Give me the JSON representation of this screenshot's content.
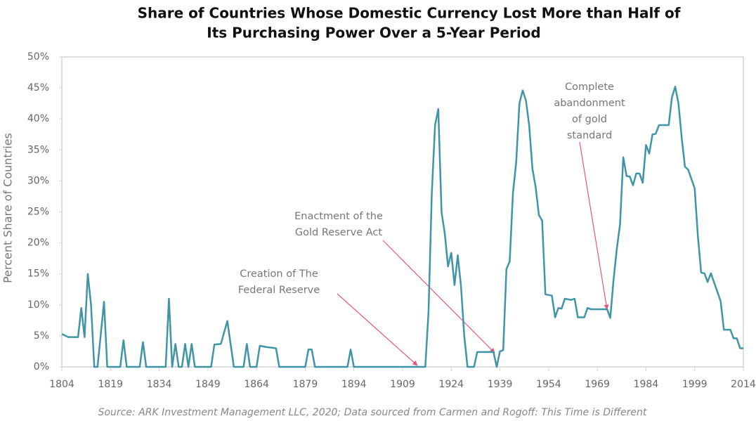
{
  "chart_data": {
    "type": "line",
    "title": [
      "Share of Countries Whose Domestic Currency Lost More than Half of",
      "Its Purchasing Power Over a 5-Year Period"
    ],
    "y_label": "Percent Share of Countries",
    "source": "Source: ARK Investment Management LLC, 2020; Data sourced from Carmen and Rogoff: This Time is Different",
    "annotations": [
      {
        "lines": [
          "Creation of The",
          "Federal Reserve"
        ],
        "x": 1913,
        "y": 0
      },
      {
        "lines": [
          "Enactment of the",
          "Gold Reserve Act"
        ],
        "x": 1934,
        "y": 2.4
      },
      {
        "lines": [
          "Complete",
          "abandonment",
          "of gold",
          "standard"
        ],
        "x": 1971,
        "y": 9.3
      }
    ],
    "xlim": [
      1804,
      2014
    ],
    "xticks": [
      1804,
      1819,
      1834,
      1849,
      1864,
      1879,
      1894,
      1909,
      1924,
      1939,
      1954,
      1969,
      1984,
      1999,
      2014
    ],
    "ylim": [
      0,
      50
    ],
    "yticks": [
      {
        "value": 0,
        "label": "0%"
      },
      {
        "value": 5,
        "label": "5%"
      },
      {
        "value": 10,
        "label": "10%"
      },
      {
        "value": 15,
        "label": "15%"
      },
      {
        "value": 20,
        "label": "20%"
      },
      {
        "value": 25,
        "label": "25%"
      },
      {
        "value": 30,
        "label": "30%"
      },
      {
        "value": 35,
        "label": "35%"
      },
      {
        "value": 40,
        "label": "40%"
      },
      {
        "value": 45,
        "label": "45%"
      },
      {
        "value": 50,
        "label": "50%"
      }
    ],
    "grid": false,
    "series": [
      {
        "color": "#3f95a5",
        "x": [
          1804,
          1806,
          1809,
          1810,
          1811,
          1812,
          1813,
          1814,
          1815,
          1817,
          1818,
          1822,
          1823,
          1824,
          1828,
          1829,
          1830,
          1836,
          1837,
          1838,
          1839,
          1840,
          1841,
          1842,
          1843,
          1844,
          1845,
          1850,
          1851,
          1853,
          1855,
          1857,
          1860,
          1861,
          1862,
          1864,
          1865,
          1867,
          1870,
          1871,
          1879,
          1880,
          1881,
          1882,
          1892,
          1893,
          1894,
          1916,
          1917,
          1918,
          1919,
          1920,
          1921,
          1922,
          1923,
          1924,
          1925,
          1926,
          1927,
          1928,
          1929,
          1931,
          1932,
          1937,
          1938,
          1939,
          1940,
          1941,
          1942,
          1943,
          1944,
          1945,
          1946,
          1947,
          1948,
          1949,
          1950,
          1951,
          1952,
          1953,
          1955,
          1956,
          1957,
          1958,
          1959,
          1961,
          1962,
          1963,
          1965,
          1966,
          1967,
          1972,
          1973,
          1974,
          1975,
          1976,
          1977,
          1978,
          1979,
          1980,
          1981,
          1982,
          1983,
          1984,
          1985,
          1986,
          1987,
          1988,
          1991,
          1992,
          1993,
          1994,
          1995,
          1996,
          1997,
          1998,
          1999,
          2000,
          2001,
          2002,
          2003,
          2004,
          2007,
          2008,
          2010,
          2011,
          2012,
          2013,
          2014
        ],
        "values": [
          5.3,
          4.8,
          4.8,
          9.5,
          4.8,
          15,
          10,
          0,
          0,
          10.5,
          0,
          0,
          4.3,
          0,
          0,
          4,
          0,
          0,
          11,
          0,
          3.7,
          0,
          0,
          3.7,
          0,
          3.7,
          0,
          0,
          3.6,
          3.7,
          7.4,
          0,
          0,
          3.7,
          0,
          0,
          3.4,
          3.2,
          3,
          0,
          0,
          2.8,
          2.8,
          0,
          0,
          2.8,
          0,
          0,
          9,
          28,
          39,
          41.6,
          25,
          21.5,
          16.2,
          18.4,
          13.2,
          18,
          13,
          5,
          0,
          0,
          2.4,
          2.4,
          0,
          2.5,
          2.7,
          15.8,
          17,
          28,
          33,
          42.5,
          44.6,
          43,
          39,
          32,
          29,
          24.5,
          23.6,
          11.7,
          11.5,
          8,
          9.5,
          9.4,
          11,
          10.8,
          11,
          8,
          8,
          9.5,
          9.3,
          9.3,
          7.9,
          14,
          19,
          23,
          33.8,
          30.8,
          30.7,
          29.3,
          31.2,
          31.2,
          29.7,
          35.8,
          34.4,
          37.5,
          37.6,
          39,
          39,
          43.5,
          45.2,
          42.5,
          37,
          32.3,
          31.8,
          30.3,
          28.8,
          21,
          15.2,
          15.1,
          13.7,
          15.1,
          10.6,
          6,
          6,
          4.6,
          4.6,
          3,
          3
        ]
      }
    ]
  }
}
